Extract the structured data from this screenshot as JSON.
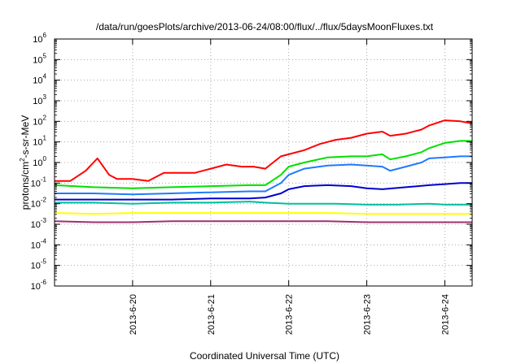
{
  "chart_data": {
    "type": "line",
    "title": "/data/run/goesPlots/archive/2013-06-24/08:00/flux/../flux/5daysMoonFluxes.txt",
    "xlabel": "Coordinated Universal Time (UTC)",
    "ylabel": {
      "base": "protons/cm",
      "sup": "2",
      "rest": "-s-sr-MeV"
    },
    "yscale": "log",
    "ylim_exp": [
      -6,
      6
    ],
    "y_ticks": [
      {
        "base": "10",
        "exp": "-6",
        "v": -6
      },
      {
        "base": "10",
        "exp": "-5",
        "v": -5
      },
      {
        "base": "10",
        "exp": "-4",
        "v": -4
      },
      {
        "base": "10",
        "exp": "-3",
        "v": -3
      },
      {
        "base": "10",
        "exp": "-2",
        "v": -2
      },
      {
        "base": "10",
        "exp": "-1",
        "v": -1
      },
      {
        "base": "10",
        "exp": "0",
        "v": 0
      },
      {
        "base": "10",
        "exp": "1",
        "v": 1
      },
      {
        "base": "10",
        "exp": "2",
        "v": 2
      },
      {
        "base": "10",
        "exp": "3",
        "v": 3
      },
      {
        "base": "10",
        "exp": "4",
        "v": 4
      },
      {
        "base": "10",
        "exp": "5",
        "v": 5
      },
      {
        "base": "10",
        "exp": "6",
        "v": 6
      }
    ],
    "xlim_days": [
      19.0,
      24.35
    ],
    "x_ticks": [
      {
        "label": "2013-6-20",
        "d": 20
      },
      {
        "label": "2013-6-21",
        "d": 21
      },
      {
        "label": "2013-6-22",
        "d": 22
      },
      {
        "label": "2013-6-23",
        "d": 23
      },
      {
        "label": "2013-6-24",
        "d": 24
      }
    ],
    "grid": true,
    "series": [
      {
        "color": "#ff0000",
        "x": [
          19.0,
          19.2,
          19.4,
          19.55,
          19.7,
          19.8,
          20.0,
          20.2,
          20.4,
          20.6,
          20.8,
          21.0,
          21.2,
          21.4,
          21.55,
          21.7,
          21.9,
          22.0,
          22.2,
          22.4,
          22.5,
          22.6,
          22.8,
          23.0,
          23.2,
          23.3,
          23.5,
          23.7,
          23.8,
          24.0,
          24.2,
          24.35
        ],
        "log_y": [
          -0.9,
          -0.9,
          -0.4,
          0.2,
          -0.6,
          -0.8,
          -0.8,
          -0.9,
          -0.5,
          -0.5,
          -0.5,
          -0.3,
          -0.1,
          -0.2,
          -0.2,
          -0.3,
          0.3,
          0.4,
          0.6,
          0.9,
          1.0,
          1.1,
          1.2,
          1.4,
          1.5,
          1.3,
          1.4,
          1.6,
          1.8,
          2.05,
          2.0,
          1.9
        ]
      },
      {
        "color": "#00e000",
        "x": [
          19.0,
          19.5,
          20.0,
          20.5,
          21.0,
          21.5,
          21.7,
          21.9,
          22.0,
          22.2,
          22.5,
          22.8,
          23.0,
          23.2,
          23.3,
          23.5,
          23.7,
          23.8,
          24.0,
          24.2,
          24.35
        ],
        "log_y": [
          -1.1,
          -1.2,
          -1.25,
          -1.2,
          -1.15,
          -1.1,
          -1.1,
          -0.6,
          -0.2,
          0.0,
          0.25,
          0.3,
          0.3,
          0.4,
          0.15,
          0.3,
          0.5,
          0.7,
          0.95,
          1.05,
          1.05
        ]
      },
      {
        "color": "#1f7aff",
        "x": [
          19.0,
          19.5,
          20.0,
          20.5,
          21.0,
          21.5,
          21.7,
          21.9,
          22.0,
          22.2,
          22.5,
          22.8,
          23.0,
          23.2,
          23.3,
          23.5,
          23.7,
          23.8,
          24.0,
          24.2,
          24.35
        ],
        "log_y": [
          -1.5,
          -1.5,
          -1.55,
          -1.5,
          -1.45,
          -1.4,
          -1.4,
          -1.0,
          -0.6,
          -0.3,
          -0.15,
          -0.1,
          -0.15,
          -0.2,
          -0.4,
          -0.2,
          0.0,
          0.2,
          0.25,
          0.3,
          0.3
        ]
      },
      {
        "color": "#0000d0",
        "x": [
          19.0,
          19.5,
          20.0,
          20.5,
          21.0,
          21.5,
          21.7,
          21.9,
          22.0,
          22.2,
          22.5,
          22.8,
          23.0,
          23.2,
          23.5,
          23.8,
          24.0,
          24.2,
          24.35
        ],
        "log_y": [
          -1.8,
          -1.8,
          -1.8,
          -1.8,
          -1.75,
          -1.75,
          -1.7,
          -1.5,
          -1.3,
          -1.15,
          -1.1,
          -1.15,
          -1.25,
          -1.3,
          -1.2,
          -1.1,
          -1.05,
          -1.0,
          -1.0
        ]
      },
      {
        "color": "#00c0a0",
        "x": [
          19.0,
          19.5,
          20.0,
          20.5,
          21.0,
          21.5,
          21.7,
          22.0,
          22.3,
          22.6,
          23.0,
          23.4,
          23.8,
          24.0,
          24.35
        ],
        "log_y": [
          -1.95,
          -1.95,
          -2.0,
          -1.95,
          -1.95,
          -1.9,
          -1.95,
          -2.0,
          -2.0,
          -2.0,
          -2.05,
          -2.05,
          -2.0,
          -2.05,
          -2.05
        ]
      },
      {
        "color": "#ffff00",
        "x": [
          19.0,
          19.5,
          20.0,
          20.5,
          21.0,
          21.5,
          22.0,
          22.5,
          23.0,
          23.5,
          24.0,
          24.35
        ],
        "log_y": [
          -2.45,
          -2.5,
          -2.45,
          -2.45,
          -2.45,
          -2.45,
          -2.45,
          -2.45,
          -2.5,
          -2.5,
          -2.5,
          -2.5
        ]
      },
      {
        "color": "#a03070",
        "x": [
          19.0,
          19.5,
          20.0,
          20.5,
          21.0,
          21.5,
          22.0,
          22.5,
          23.0,
          23.5,
          24.0,
          24.35
        ],
        "log_y": [
          -2.85,
          -2.9,
          -2.9,
          -2.85,
          -2.85,
          -2.85,
          -2.85,
          -2.85,
          -2.9,
          -2.9,
          -2.9,
          -2.9
        ]
      }
    ]
  }
}
